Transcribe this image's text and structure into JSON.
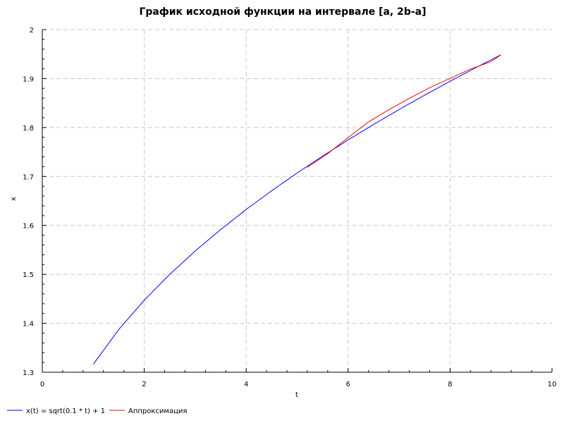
{
  "chart_data": {
    "type": "line",
    "title": "График исходной функции на интервале [a, 2b-a]",
    "xlabel": "t",
    "ylabel": "x",
    "xlim": [
      0,
      10
    ],
    "ylim": [
      1.3,
      2.0
    ],
    "x_ticks": [
      "0",
      "2",
      "4",
      "6",
      "8",
      "10"
    ],
    "y_ticks": [
      "1.3",
      "1.4",
      "1.5",
      "1.6",
      "1.7",
      "1.8",
      "1.9",
      "2"
    ],
    "grid": true,
    "legend_position": "bottom",
    "series": [
      {
        "name": "x(t) = sqrt(0.1 * t) + 1",
        "color": "#0000ff",
        "x": [
          1.0,
          1.5,
          2.0,
          2.5,
          3.0,
          3.5,
          4.0,
          4.5,
          5.0,
          5.5,
          6.0,
          6.5,
          7.0,
          7.5,
          8.0,
          8.5,
          9.0
        ],
        "y": [
          1.3162,
          1.3873,
          1.4472,
          1.5,
          1.5477,
          1.5916,
          1.6325,
          1.6708,
          1.7071,
          1.7416,
          1.7746,
          1.8062,
          1.8367,
          1.866,
          1.8944,
          1.922,
          1.9487
        ]
      },
      {
        "name": "Аппроксимация",
        "color": "#ff0000",
        "x": [
          5.2,
          5.6,
          6.0,
          6.4,
          6.8,
          7.2,
          7.6,
          8.0,
          8.4,
          8.8,
          9.0
        ],
        "y": [
          1.7186,
          1.7466,
          1.7794,
          1.8114,
          1.8364,
          1.8594,
          1.8814,
          1.9004,
          1.9194,
          1.9344,
          1.9487
        ]
      }
    ]
  }
}
